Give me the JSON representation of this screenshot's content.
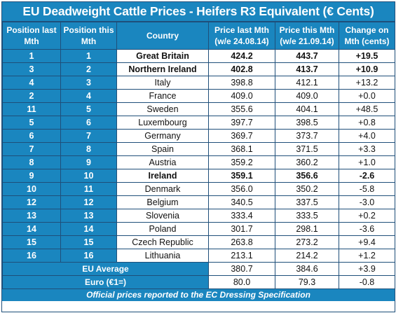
{
  "title": "EU Deadweight Cattle Prices - Heifers R3 Equivalent (€ Cents)",
  "headers": {
    "pos_last": "Position last Mth",
    "pos_this": "Position this Mth",
    "country": "Country",
    "price_last": "Price last Mth (w/e 24.08.14)",
    "price_this": "Price this Mth (w/e 21.09.14)",
    "change": "Change on Mth (cents)"
  },
  "rows": [
    {
      "pos_last": "1",
      "pos_this": "1",
      "country": "Great Britain",
      "price_last": "424.2",
      "price_this": "443.7",
      "change": "+19.5",
      "bold": true
    },
    {
      "pos_last": "3",
      "pos_this": "2",
      "country": "Northern Ireland",
      "price_last": "402.8",
      "price_this": "413.7",
      "change": "+10.9",
      "bold": true
    },
    {
      "pos_last": "4",
      "pos_this": "3",
      "country": "Italy",
      "price_last": "398.8",
      "price_this": "412.1",
      "change": "+13.2",
      "bold": false
    },
    {
      "pos_last": "2",
      "pos_this": "4",
      "country": "France",
      "price_last": "409.0",
      "price_this": "409.0",
      "change": "+0.0",
      "bold": false
    },
    {
      "pos_last": "11",
      "pos_this": "5",
      "country": "Sweden",
      "price_last": "355.6",
      "price_this": "404.1",
      "change": "+48.5",
      "bold": false
    },
    {
      "pos_last": "5",
      "pos_this": "6",
      "country": "Luxembourg",
      "price_last": "397.7",
      "price_this": "398.5",
      "change": "+0.8",
      "bold": false
    },
    {
      "pos_last": "6",
      "pos_this": "7",
      "country": "Germany",
      "price_last": "369.7",
      "price_this": "373.7",
      "change": "+4.0",
      "bold": false
    },
    {
      "pos_last": "7",
      "pos_this": "8",
      "country": "Spain",
      "price_last": "368.1",
      "price_this": "371.5",
      "change": "+3.3",
      "bold": false
    },
    {
      "pos_last": "8",
      "pos_this": "9",
      "country": "Austria",
      "price_last": "359.2",
      "price_this": "360.2",
      "change": "+1.0",
      "bold": false
    },
    {
      "pos_last": "9",
      "pos_this": "10",
      "country": "Ireland",
      "price_last": "359.1",
      "price_this": "356.6",
      "change": "-2.6",
      "bold": true
    },
    {
      "pos_last": "10",
      "pos_this": "11",
      "country": "Denmark",
      "price_last": "356.0",
      "price_this": "350.2",
      "change": "-5.8",
      "bold": false
    },
    {
      "pos_last": "12",
      "pos_this": "12",
      "country": "Belgium",
      "price_last": "340.5",
      "price_this": "337.5",
      "change": "-3.0",
      "bold": false
    },
    {
      "pos_last": "13",
      "pos_this": "13",
      "country": "Slovenia",
      "price_last": "333.4",
      "price_this": "333.5",
      "change": "+0.2",
      "bold": false
    },
    {
      "pos_last": "14",
      "pos_this": "14",
      "country": "Poland",
      "price_last": "301.7",
      "price_this": "298.1",
      "change": "-3.6",
      "bold": false
    },
    {
      "pos_last": "15",
      "pos_this": "15",
      "country": "Czech Republic",
      "price_last": "263.8",
      "price_this": "273.2",
      "change": "+9.4",
      "bold": false
    },
    {
      "pos_last": "16",
      "pos_this": "16",
      "country": "Lithuania",
      "price_last": "213.1",
      "price_this": "214.2",
      "change": "+1.2",
      "bold": false
    }
  ],
  "eu_average": {
    "label": "EU Average",
    "price_last": "380.7",
    "price_this": "384.6",
    "change": "+3.9"
  },
  "euro": {
    "label": "Euro (€1=)",
    "price_last": "80.0",
    "price_this": "79.3",
    "change": "-0.8"
  },
  "footer": "Official prices reported to the EC Dressing Specification",
  "colors": {
    "header_blue": "#1a86bf",
    "border": "#1f4f7a",
    "text": "#111111"
  }
}
